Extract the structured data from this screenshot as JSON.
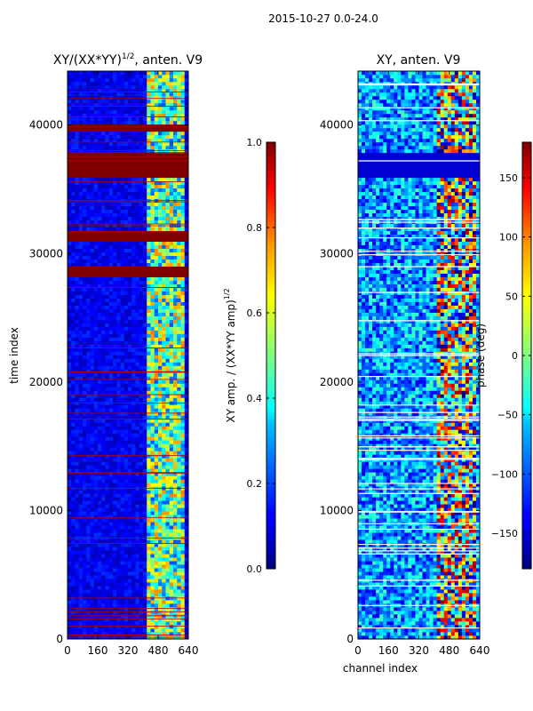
{
  "suptitle": "2015-10-27 0.0-24.0",
  "xlabel_shared": "channel index",
  "panels": {
    "left": {
      "title_main": "XY/(XX*YY)",
      "title_exp": "1/2",
      "title_suffix": ", anten. V9",
      "ylabel": "time index",
      "colorbar_label_main": "XY amp. / (XX*YY amp)",
      "colorbar_label_exp": "1/2"
    },
    "right": {
      "title": "XY, anten. V9",
      "colorbar_label": "phase (deg)"
    }
  },
  "chart_data": [
    {
      "type": "heatmap",
      "title": "XY/(XX*YY)^1/2, anten. V9",
      "xlabel": "",
      "ylabel": "time index",
      "x_range": [
        0,
        640
      ],
      "y_range": [
        0,
        44200
      ],
      "x_ticks": [
        0,
        160,
        320,
        480,
        640
      ],
      "x_tick_labels": [
        "0",
        "160",
        "320",
        "480",
        "640"
      ],
      "y_ticks": [
        0,
        10000,
        20000,
        30000,
        40000
      ],
      "y_tick_labels": [
        "0",
        "10000",
        "20000",
        "30000",
        "40000"
      ],
      "colormap": "jet",
      "colorbar": {
        "label": "XY amp. / (XX*YY amp)^1/2",
        "range": [
          0.0,
          1.0
        ],
        "ticks": [
          0.0,
          0.2,
          0.4,
          0.6,
          0.8,
          1.0
        ],
        "tick_labels": [
          "0.0",
          "0.2",
          "0.4",
          "0.6",
          "0.8",
          "1.0"
        ]
      },
      "features": {
        "background_value": 0.1,
        "active_channel_band": [
          410,
          615
        ],
        "saturated_time_bands": [
          [
            35800,
            37800
          ],
          [
            28000,
            28800
          ],
          [
            30800,
            31600
          ],
          [
            39500,
            40000
          ]
        ]
      }
    },
    {
      "type": "heatmap",
      "title": "XY, anten. V9",
      "xlabel": "channel index",
      "ylabel": "",
      "x_range": [
        0,
        640
      ],
      "y_range": [
        0,
        44200
      ],
      "x_ticks": [
        0,
        160,
        320,
        480,
        640
      ],
      "x_tick_labels": [
        "0",
        "160",
        "320",
        "480",
        "640"
      ],
      "y_ticks": [
        0,
        10000,
        20000,
        30000,
        40000
      ],
      "y_tick_labels": [
        "0",
        "10000",
        "20000",
        "30000",
        "40000"
      ],
      "colormap": "jet",
      "colorbar": {
        "label": "phase (deg)",
        "range": [
          -180,
          180
        ],
        "ticks": [
          -150,
          -100,
          -50,
          0,
          50,
          100,
          150
        ],
        "tick_labels": [
          "−150",
          "−100",
          "−50",
          "0",
          "50",
          "100",
          "150"
        ]
      },
      "features": {
        "saturated_time_band": [
          37600,
          35800
        ],
        "active_channel_band": [
          410,
          615
        ]
      }
    }
  ]
}
